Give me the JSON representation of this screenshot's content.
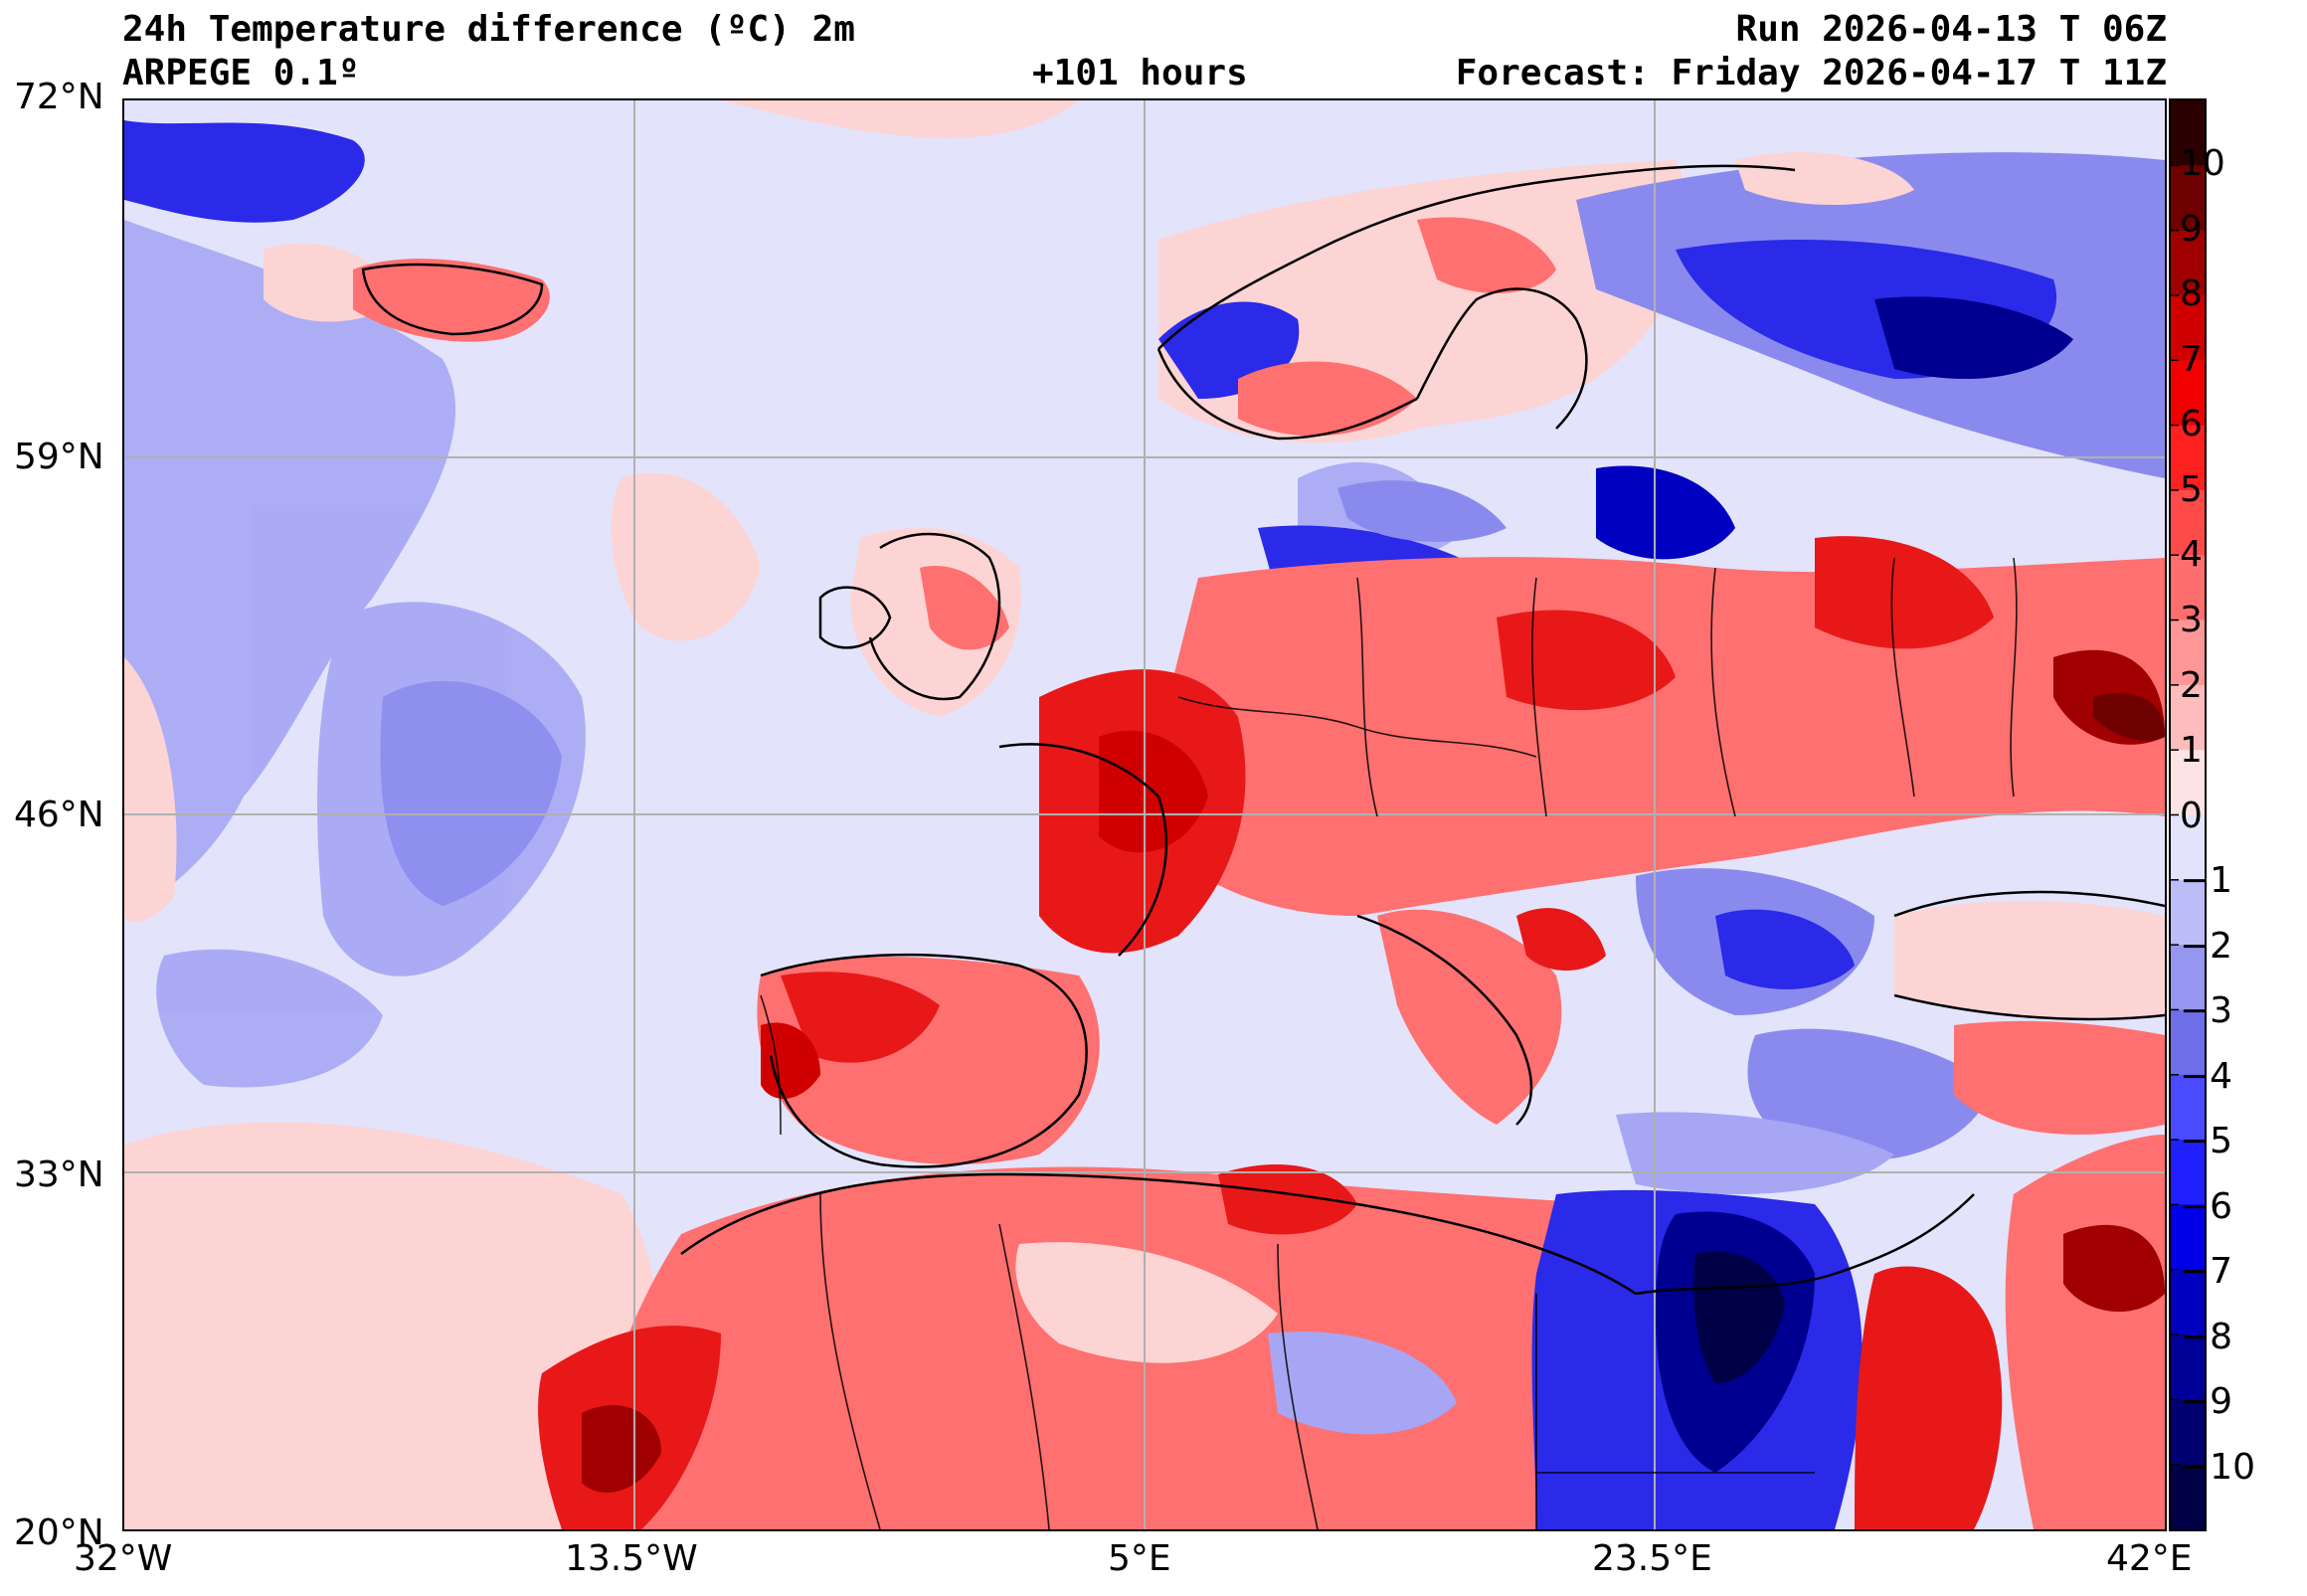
{
  "header": {
    "title": "24h Temperature difference (ºC) 2m",
    "model": "ARPEGE 0.1º",
    "lead_time": "+101 hours",
    "run": "Run 2026-04-13 T 06Z",
    "forecast": "Forecast: Friday 2026-04-17 T 11Z"
  },
  "axes": {
    "lat_labels": [
      "72°N",
      "59°N",
      "46°N",
      "33°N",
      "20°N"
    ],
    "lon_labels": [
      "32°W",
      "13.5°W",
      "5°E",
      "23.5°E",
      "42°E"
    ]
  },
  "colorbar": {
    "labels": [
      "10",
      "9",
      "8",
      "7",
      "6",
      "5",
      "4",
      "3",
      "2",
      "1",
      "0",
      "−1",
      "−2",
      "−3",
      "−4",
      "−5",
      "−6",
      "−7",
      "−8",
      "−9",
      "−10"
    ],
    "colors": [
      "#2a0000",
      "#6e0000",
      "#a00000",
      "#d00000",
      "#f00000",
      "#ff2020",
      "#ff4a4a",
      "#ff6e6e",
      "#ff9696",
      "#ffbcbc",
      "#fde3e3",
      "#e3e3fb",
      "#bcbcf7",
      "#9696f0",
      "#6e6ee8",
      "#4a4aff",
      "#2020ff",
      "#0000e8",
      "#0000c0",
      "#000098",
      "#000070",
      "#000046"
    ]
  },
  "legend_colors": {
    "warm_strong": "#e81818",
    "warm_mid": "#ff7070",
    "warm_light": "#fdd4d4",
    "cool_light": "#e3e3fb",
    "cool_mid": "#a6a6f5",
    "cool_strong": "#2a2ae8",
    "cool_deep": "#000090"
  }
}
